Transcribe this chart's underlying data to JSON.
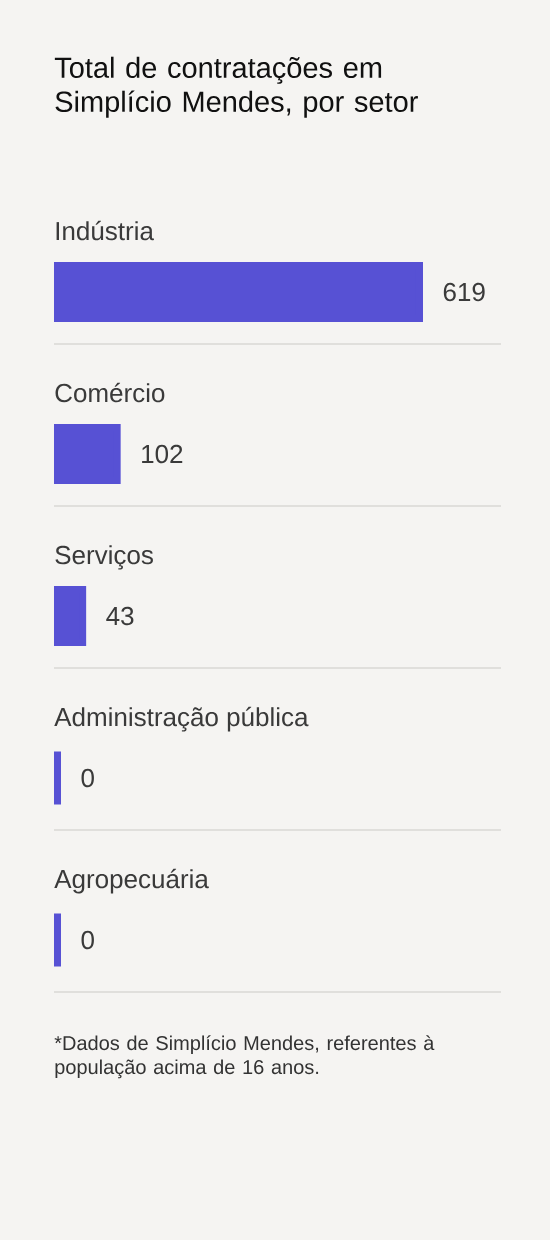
{
  "chart_data": {
    "type": "bar",
    "orientation": "horizontal",
    "title": "Total de contratações em Simplício Mendes, por setor",
    "categories": [
      "Indústria",
      "Comércio",
      "Serviços",
      "Administração pública",
      "Agropecuária"
    ],
    "values": [
      619,
      102,
      43,
      0,
      0
    ],
    "color": "#5751d4",
    "data_labels": true,
    "grid": "y",
    "tick_labels": "y",
    "annotations": [
      "*Dados de Simplício Mendes, referentes à população acima de 16 anos."
    ]
  }
}
